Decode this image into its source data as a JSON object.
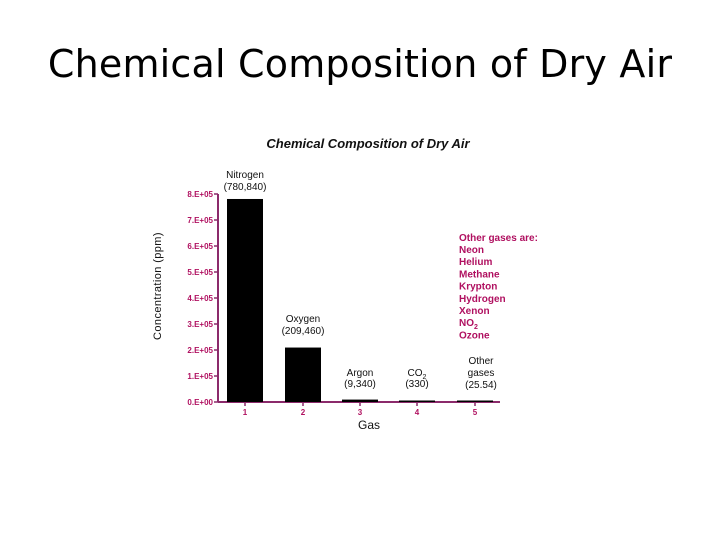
{
  "slide": {
    "title": "Chemical Composition of Dry Air"
  },
  "colors": {
    "axis": "#8b2a6b",
    "tick": "#b01060",
    "bar": "#000000"
  },
  "chart_data": {
    "type": "bar",
    "title": "Chemical Composition of Dry Air",
    "xlabel": "Gas",
    "ylabel": "Concentration (ppm)",
    "categories": [
      "1",
      "2",
      "3",
      "4",
      "5"
    ],
    "values": [
      780840,
      209460,
      9340,
      330,
      25.54
    ],
    "ylim": [
      0,
      800000
    ],
    "yticks": [
      0,
      100000,
      200000,
      300000,
      400000,
      500000,
      600000,
      700000,
      800000
    ],
    "ytick_labels": [
      "0.E+00",
      "1.E+05",
      "2.E+05",
      "3.E+05",
      "4.E+05",
      "5.E+05",
      "6.E+05",
      "7.E+05",
      "8.E+05"
    ],
    "bar_labels": [
      {
        "name": "Nitrogen",
        "value": "(780,840)"
      },
      {
        "name": "Oxygen",
        "value": "(209,460)"
      },
      {
        "name": "Argon",
        "value": "(9,340)"
      },
      {
        "name": "CO",
        "sub": "2",
        "value": "(330)"
      },
      {
        "name": "Other",
        "name2": "gases",
        "value": "(25.54)"
      }
    ],
    "annotation": {
      "heading": "Other gases are:",
      "items": [
        "Neon",
        "Helium",
        "Methane",
        "Krypton",
        "Hydrogen",
        "Xenon",
        "NO",
        "Ozone"
      ],
      "no_sub": "2"
    },
    "grid": false,
    "legend": "none"
  }
}
